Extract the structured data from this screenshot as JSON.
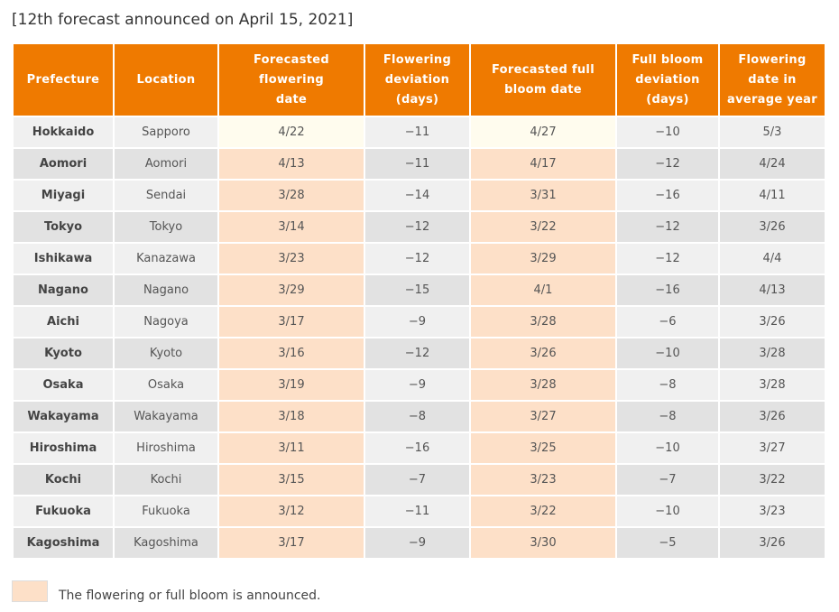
{
  "caption": "[12th forecast announced on April 15, 2021]",
  "colors": {
    "header_bg": "#ef7a00",
    "announced": "#fde0c8",
    "not_announced": "#fffcee",
    "row_light": "#f0f0f0",
    "row_dark": "#e2e2e2"
  },
  "table": {
    "headers": [
      "Prefecture",
      "Location",
      "Forecasted flowering date",
      "Flowering deviation (days)",
      "Forecasted full bloom date",
      "Full bloom deviation (days)",
      "Flowering date in average year"
    ],
    "rows": [
      {
        "prefecture": "Hokkaido",
        "location": "Sapporo",
        "flowering_date": "4/22",
        "flowering_deviation": "−11",
        "full_bloom_date": "4/27",
        "full_bloom_deviation": "−10",
        "average_date": "5/3",
        "flowering_announced": false,
        "full_bloom_announced": false
      },
      {
        "prefecture": "Aomori",
        "location": "Aomori",
        "flowering_date": "4/13",
        "flowering_deviation": "−11",
        "full_bloom_date": "4/17",
        "full_bloom_deviation": "−12",
        "average_date": "4/24",
        "flowering_announced": true,
        "full_bloom_announced": true
      },
      {
        "prefecture": "Miyagi",
        "location": "Sendai",
        "flowering_date": "3/28",
        "flowering_deviation": "−14",
        "full_bloom_date": "3/31",
        "full_bloom_deviation": "−16",
        "average_date": "4/11",
        "flowering_announced": true,
        "full_bloom_announced": true
      },
      {
        "prefecture": "Tokyo",
        "location": "Tokyo",
        "flowering_date": "3/14",
        "flowering_deviation": "−12",
        "full_bloom_date": "3/22",
        "full_bloom_deviation": "−12",
        "average_date": "3/26",
        "flowering_announced": true,
        "full_bloom_announced": true
      },
      {
        "prefecture": "Ishikawa",
        "location": "Kanazawa",
        "flowering_date": "3/23",
        "flowering_deviation": "−12",
        "full_bloom_date": "3/29",
        "full_bloom_deviation": "−12",
        "average_date": "4/4",
        "flowering_announced": true,
        "full_bloom_announced": true
      },
      {
        "prefecture": "Nagano",
        "location": "Nagano",
        "flowering_date": "3/29",
        "flowering_deviation": "−15",
        "full_bloom_date": "4/1",
        "full_bloom_deviation": "−16",
        "average_date": "4/13",
        "flowering_announced": true,
        "full_bloom_announced": true
      },
      {
        "prefecture": "Aichi",
        "location": "Nagoya",
        "flowering_date": "3/17",
        "flowering_deviation": "−9",
        "full_bloom_date": "3/28",
        "full_bloom_deviation": "−6",
        "average_date": "3/26",
        "flowering_announced": true,
        "full_bloom_announced": true
      },
      {
        "prefecture": "Kyoto",
        "location": "Kyoto",
        "flowering_date": "3/16",
        "flowering_deviation": "−12",
        "full_bloom_date": "3/26",
        "full_bloom_deviation": "−10",
        "average_date": "3/28",
        "flowering_announced": true,
        "full_bloom_announced": true
      },
      {
        "prefecture": "Osaka",
        "location": "Osaka",
        "flowering_date": "3/19",
        "flowering_deviation": "−9",
        "full_bloom_date": "3/28",
        "full_bloom_deviation": "−8",
        "average_date": "3/28",
        "flowering_announced": true,
        "full_bloom_announced": true
      },
      {
        "prefecture": "Wakayama",
        "location": "Wakayama",
        "flowering_date": "3/18",
        "flowering_deviation": "−8",
        "full_bloom_date": "3/27",
        "full_bloom_deviation": "−8",
        "average_date": "3/26",
        "flowering_announced": true,
        "full_bloom_announced": true
      },
      {
        "prefecture": "Hiroshima",
        "location": "Hiroshima",
        "flowering_date": "3/11",
        "flowering_deviation": "−16",
        "full_bloom_date": "3/25",
        "full_bloom_deviation": "−10",
        "average_date": "3/27",
        "flowering_announced": true,
        "full_bloom_announced": true
      },
      {
        "prefecture": "Kochi",
        "location": "Kochi",
        "flowering_date": "3/15",
        "flowering_deviation": "−7",
        "full_bloom_date": "3/23",
        "full_bloom_deviation": "−7",
        "average_date": "3/22",
        "flowering_announced": true,
        "full_bloom_announced": true
      },
      {
        "prefecture": "Fukuoka",
        "location": "Fukuoka",
        "flowering_date": "3/12",
        "flowering_deviation": "−11",
        "full_bloom_date": "3/22",
        "full_bloom_deviation": "−10",
        "average_date": "3/23",
        "flowering_announced": true,
        "full_bloom_announced": true
      },
      {
        "prefecture": "Kagoshima",
        "location": "Kagoshima",
        "flowering_date": "3/17",
        "flowering_deviation": "−9",
        "full_bloom_date": "3/30",
        "full_bloom_deviation": "−5",
        "average_date": "3/26",
        "flowering_announced": true,
        "full_bloom_announced": true
      }
    ]
  },
  "legend": {
    "text": "The flowering or full bloom is announced."
  }
}
